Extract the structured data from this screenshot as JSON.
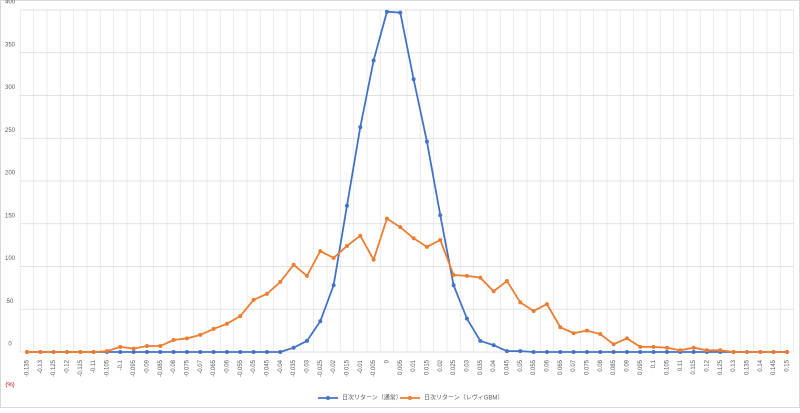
{
  "chart_data": {
    "type": "line",
    "categories": [
      "-0.135",
      "-0.13",
      "-0.125",
      "-0.12",
      "-0.115",
      "-0.11",
      "-0.105",
      "-0.1",
      "-0.095",
      "-0.09",
      "-0.085",
      "-0.08",
      "-0.075",
      "-0.07",
      "-0.065",
      "-0.06",
      "-0.055",
      "-0.05",
      "-0.045",
      "-0.04",
      "-0.035",
      "-0.03",
      "-0.025",
      "-0.02",
      "-0.015",
      "-0.01",
      "-0.005",
      "0",
      "0.005",
      "0.01",
      "0.015",
      "0.02",
      "0.025",
      "0.03",
      "0.035",
      "0.04",
      "0.045",
      "0.05",
      "0.055",
      "0.06",
      "0.065",
      "0.07",
      "0.075",
      "0.08",
      "0.085",
      "0.09",
      "0.095",
      "0.1",
      "0.105",
      "0.11",
      "0.115",
      "0.12",
      "0.125",
      "0.13",
      "0.135",
      "0.14",
      "0.145",
      "0.15"
    ],
    "series": [
      {
        "name": "日次リターン（通常）",
        "color": "#4472c4",
        "values": [
          0,
          0,
          0,
          0,
          0,
          0,
          0,
          0,
          0,
          0,
          0,
          0,
          0,
          0,
          0,
          0,
          0,
          0,
          0,
          0,
          5,
          13,
          36,
          78,
          171,
          263,
          341,
          398,
          397,
          319,
          246,
          160,
          78,
          39,
          13,
          8,
          1,
          1,
          0,
          0,
          0,
          0,
          0,
          0,
          0,
          0,
          0,
          0,
          0,
          0,
          0,
          0,
          0,
          0,
          0,
          0,
          0,
          0
        ]
      },
      {
        "name": "日次リターン（レヴィGBM）",
        "color": "#ed7d31",
        "values": [
          0,
          0,
          0,
          0,
          0,
          0,
          1,
          6,
          4,
          7,
          7,
          14,
          16,
          20,
          27,
          33,
          42,
          61,
          68,
          82,
          102,
          89,
          118,
          110,
          124,
          136,
          108,
          156,
          146,
          133,
          123,
          131,
          90,
          89,
          87,
          71,
          83,
          58,
          48,
          56,
          29,
          22,
          25,
          21,
          9,
          16,
          6,
          6,
          5,
          2,
          5,
          2,
          2,
          0,
          0,
          0,
          0,
          0
        ]
      }
    ],
    "x_unit": "(%)",
    "ylim": [
      0,
      400
    ],
    "yticks": [
      0,
      50,
      100,
      150,
      200,
      250,
      300,
      350,
      400
    ],
    "grid": true,
    "legend": "bottom"
  }
}
